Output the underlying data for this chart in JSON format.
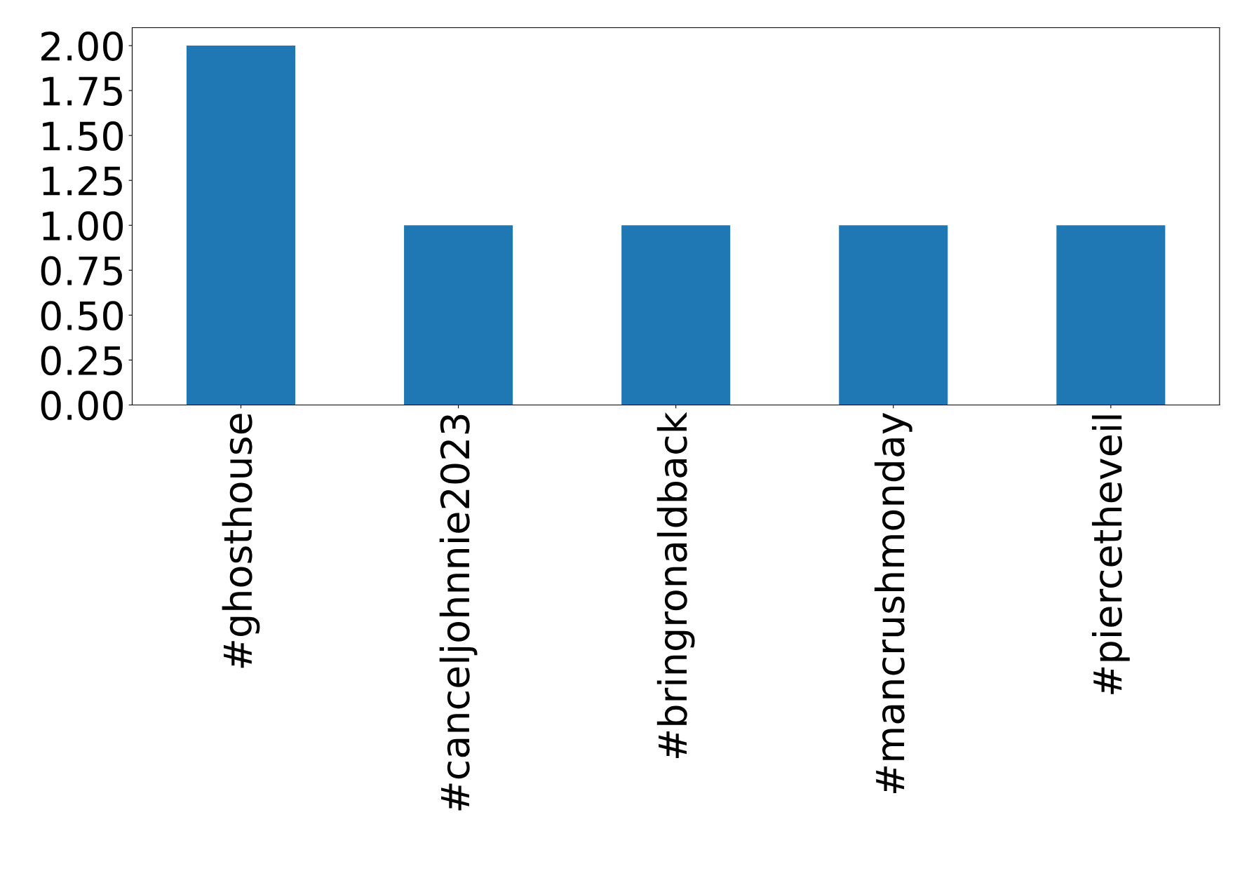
{
  "chart_data": {
    "type": "bar",
    "categories": [
      "#ghosthouse",
      "#canceljohnnie2023",
      "#bringronaldback",
      "#mancrushmonday",
      "#piercetheveil"
    ],
    "values": [
      2,
      1,
      1,
      1,
      1
    ],
    "color": "#1f77b4",
    "ylim": [
      0,
      2.1
    ],
    "yticks": [
      {
        "value": 0,
        "label": "0.00"
      },
      {
        "value": 0.25,
        "label": "0.25"
      },
      {
        "value": 0.5,
        "label": "0.50"
      },
      {
        "value": 0.75,
        "label": "0.75"
      },
      {
        "value": 1,
        "label": "1.00"
      },
      {
        "value": 1.25,
        "label": "1.25"
      },
      {
        "value": 1.5,
        "label": "1.50"
      },
      {
        "value": 1.75,
        "label": "1.75"
      },
      {
        "value": 2,
        "label": "2.00"
      }
    ],
    "grid": false,
    "legend": false
  }
}
